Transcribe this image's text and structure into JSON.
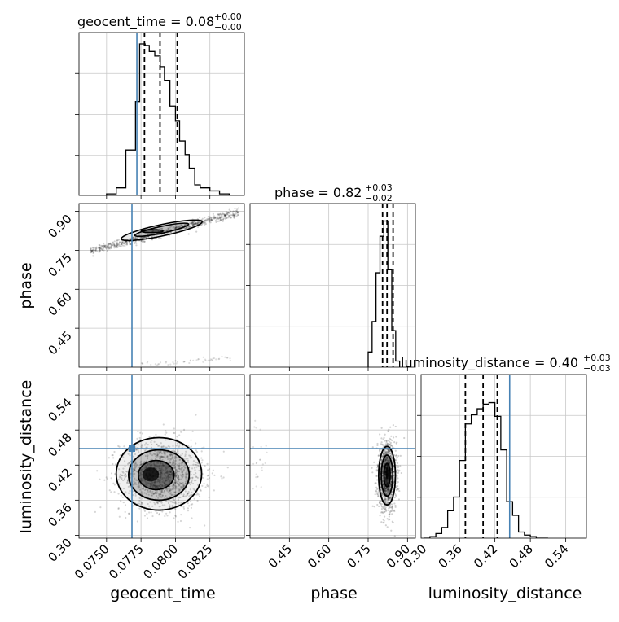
{
  "chart_data": {
    "type": "corner",
    "colors": {
      "truth": "#4682b4",
      "hist": "#000000",
      "grid": "#c8c8c8"
    },
    "parameters": [
      {
        "name": "geocent_time",
        "median": "0.08",
        "plus": "+0.00",
        "minus": "−0.00",
        "truth": 0.0772,
        "range": [
          0.073,
          0.085
        ],
        "ticks": [
          0.075,
          0.0775,
          0.08,
          0.0825
        ],
        "tick_labels": [
          "0.0750",
          "0.0775",
          "0.0800",
          "0.0825"
        ],
        "quantiles": [
          0.07775,
          0.07888,
          0.08013
        ]
      },
      {
        "name": "phase",
        "median": "0.82",
        "plus": "+0.03",
        "minus": "−0.02",
        "truth": 0.3,
        "range": [
          0.3,
          0.93
        ],
        "ticks": [
          0.45,
          0.6,
          0.75,
          0.9
        ],
        "tick_labels": [
          "0.45",
          "0.60",
          "0.75",
          "0.90"
        ],
        "quantiles": [
          0.805,
          0.822,
          0.845
        ]
      },
      {
        "name": "luminosity_distance",
        "median": "0.40",
        "plus": "+0.03",
        "minus": "−0.03",
        "truth": 0.445,
        "range": [
          0.295,
          0.575
        ],
        "ticks": [
          0.3,
          0.36,
          0.42,
          0.48,
          0.54
        ],
        "tick_labels": [
          "0.30",
          "0.36",
          "0.42",
          "0.48",
          "0.54"
        ],
        "quantiles": [
          0.37,
          0.4,
          0.424
        ]
      }
    ],
    "histograms": [
      {
        "parameter": "geocent_time",
        "edges": [
          0.075,
          0.0757,
          0.0764,
          0.0771,
          0.0774,
          0.0778,
          0.0781,
          0.0785,
          0.0789,
          0.0792,
          0.0796,
          0.08,
          0.0803,
          0.0807,
          0.081,
          0.0814,
          0.0818,
          0.0825,
          0.0832,
          0.0839,
          0.0846
        ],
        "counts": [
          0.01,
          0.05,
          0.3,
          0.62,
          1.0,
          0.99,
          0.95,
          0.92,
          0.85,
          0.76,
          0.59,
          0.49,
          0.36,
          0.27,
          0.18,
          0.07,
          0.05,
          0.03,
          0.01,
          0.0
        ]
      },
      {
        "parameter": "phase",
        "edges": [
          0.75,
          0.765,
          0.78,
          0.795,
          0.81,
          0.825,
          0.84,
          0.855,
          0.87
        ],
        "counts": [
          0.1,
          0.3,
          0.62,
          0.86,
          0.96,
          0.64,
          0.24,
          0.04
        ]
      },
      {
        "parameter": "luminosity_distance",
        "edges": [
          0.3,
          0.31,
          0.32,
          0.33,
          0.34,
          0.35,
          0.36,
          0.37,
          0.38,
          0.39,
          0.4,
          0.41,
          0.42,
          0.43,
          0.44,
          0.45,
          0.46,
          0.47,
          0.48,
          0.49,
          0.5,
          0.51
        ],
        "counts": [
          0.0,
          0.01,
          0.03,
          0.07,
          0.18,
          0.27,
          0.51,
          0.75,
          0.81,
          0.85,
          0.88,
          0.89,
          0.8,
          0.58,
          0.24,
          0.15,
          0.04,
          0.02,
          0.01,
          0.0,
          0.0
        ]
      }
    ],
    "scatter_panels": [
      {
        "x": "geocent_time",
        "y": "phase"
      },
      {
        "x": "geocent_time",
        "y": "luminosity_distance"
      },
      {
        "x": "phase",
        "y": "luminosity_distance"
      }
    ]
  }
}
